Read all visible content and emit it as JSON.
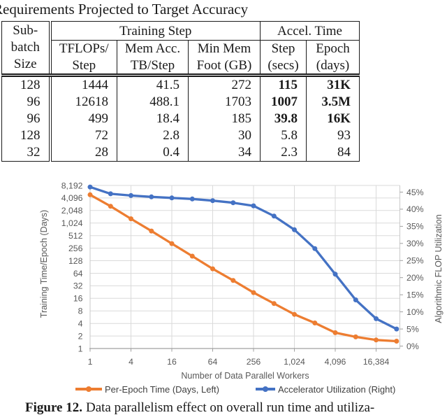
{
  "page": {
    "title": "Requirements Projected to Target Accuracy"
  },
  "table": {
    "row_header": "Sub-\nbatch\nSize",
    "group_headers": [
      {
        "label": "Training Step",
        "span": 3
      },
      {
        "label": "Accel. Time",
        "span": 2
      }
    ],
    "sub_headers": [
      "TFLOPs/\nStep",
      "Mem Acc.\nTB/Step",
      "Min Mem\nFoot (GB)",
      "Step\n(secs)",
      "Epoch\n(days)"
    ],
    "rows": [
      {
        "cells": [
          "128",
          "1444",
          "41.5",
          "272",
          "115",
          "31K"
        ],
        "bold_cols": [
          4,
          5
        ]
      },
      {
        "cells": [
          "96",
          "12618",
          "488.1",
          "1703",
          "1007",
          "3.5M"
        ],
        "bold_cols": [
          4,
          5
        ]
      },
      {
        "cells": [
          "96",
          "499",
          "18.4",
          "185",
          "39.8",
          "16K"
        ],
        "bold_cols": [
          4,
          5
        ]
      },
      {
        "cells": [
          "128",
          "72",
          "2.8",
          "30",
          "5.8",
          "93"
        ],
        "bold_cols": []
      },
      {
        "cells": [
          "32",
          "28",
          "0.4",
          "34",
          "2.3",
          "84"
        ],
        "bold_cols": []
      }
    ]
  },
  "chart_data": {
    "type": "line",
    "title": "",
    "xlabel": "Number of Data Parallel Workers",
    "ylabel_left": "Training Time/Epoch (Days)",
    "ylabel_right": "Algorithmic FLOP Utilization",
    "x_scale": "log2",
    "y_left_scale": "log2",
    "grid": true,
    "legend_position": "bottom",
    "x": [
      1,
      2,
      4,
      8,
      16,
      32,
      64,
      128,
      256,
      512,
      1024,
      2048,
      4096,
      8192,
      16384,
      32768
    ],
    "x_tick_values": [
      1,
      4,
      16,
      64,
      256,
      1024,
      4096,
      16384
    ],
    "x_tick_labels": [
      "1",
      "4",
      "16",
      "64",
      "256",
      "1,024",
      "4,096",
      "16,384"
    ],
    "y_left_tick_labels": [
      "8,192",
      "4,096",
      "2,048",
      "1,024",
      "512",
      "256",
      "128",
      "64",
      "32",
      "16",
      "8",
      "4",
      "2",
      "1"
    ],
    "y_left_range": [
      1,
      8192
    ],
    "y_right_tick_labels": [
      "45%",
      "40%",
      "35%",
      "30%",
      "25%",
      "20%",
      "15%",
      "10%",
      "5%",
      "0%"
    ],
    "y_right_range": [
      0,
      45
    ],
    "series": [
      {
        "name": "Per-Epoch Time (Days, Left)",
        "axis": "left",
        "color": "#ED7D31",
        "marker": "circle",
        "values": [
          4900,
          2600,
          1300,
          660,
          330,
          165,
          82,
          43,
          22,
          12,
          6.6,
          4.1,
          2.4,
          1.9,
          1.6,
          1.5
        ]
      },
      {
        "name": "Accelerator Utilization (Right)",
        "axis": "right",
        "color": "#4472C4",
        "marker": "circle",
        "values": [
          46.5,
          44.5,
          44,
          43.6,
          43.3,
          43,
          42.5,
          41.9,
          41,
          38,
          34,
          28.5,
          21,
          13.5,
          8,
          5
        ]
      }
    ]
  },
  "caption": {
    "label": "Figure 12.",
    "text": "Data parallelism effect on overall run time and utiliza-"
  }
}
